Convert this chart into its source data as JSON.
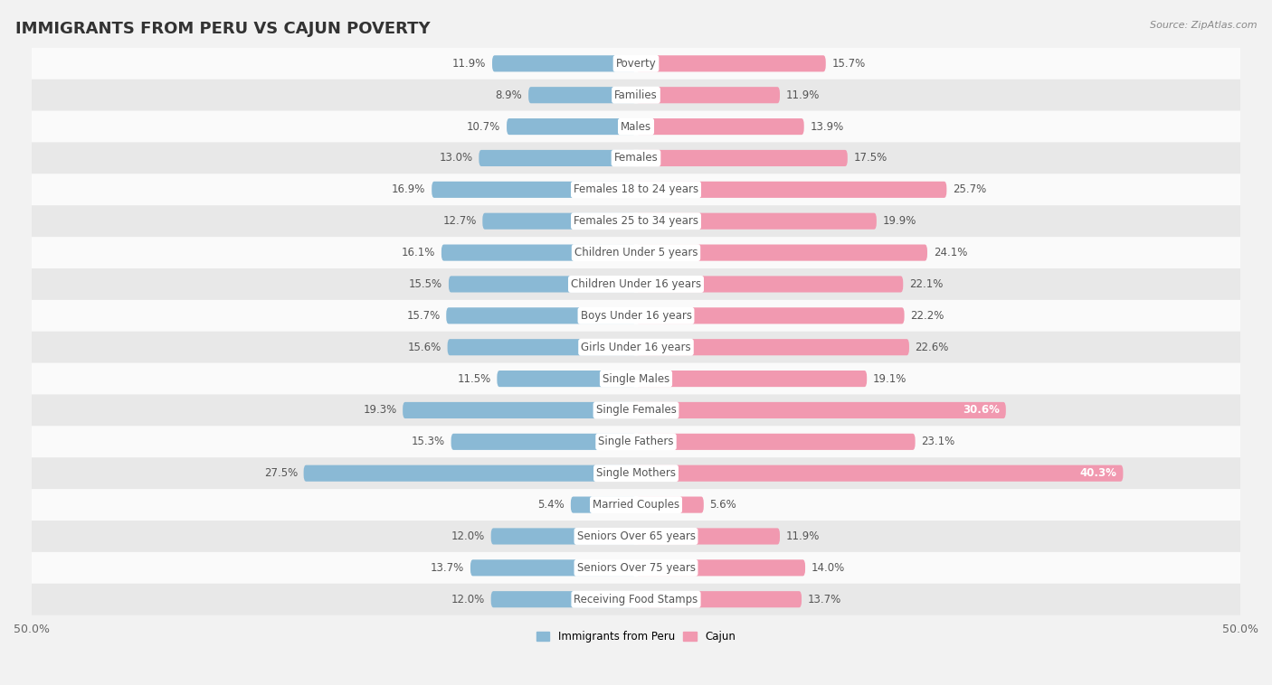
{
  "title": "IMMIGRANTS FROM PERU VS CAJUN POVERTY",
  "source": "Source: ZipAtlas.com",
  "categories": [
    "Poverty",
    "Families",
    "Males",
    "Females",
    "Females 18 to 24 years",
    "Females 25 to 34 years",
    "Children Under 5 years",
    "Children Under 16 years",
    "Boys Under 16 years",
    "Girls Under 16 years",
    "Single Males",
    "Single Females",
    "Single Fathers",
    "Single Mothers",
    "Married Couples",
    "Seniors Over 65 years",
    "Seniors Over 75 years",
    "Receiving Food Stamps"
  ],
  "peru_values": [
    11.9,
    8.9,
    10.7,
    13.0,
    16.9,
    12.7,
    16.1,
    15.5,
    15.7,
    15.6,
    11.5,
    19.3,
    15.3,
    27.5,
    5.4,
    12.0,
    13.7,
    12.0
  ],
  "cajun_values": [
    15.7,
    11.9,
    13.9,
    17.5,
    25.7,
    19.9,
    24.1,
    22.1,
    22.2,
    22.6,
    19.1,
    30.6,
    23.1,
    40.3,
    5.6,
    11.9,
    14.0,
    13.7
  ],
  "peru_color": "#8ab9d5",
  "cajun_color": "#f199b0",
  "peru_label": "Immigrants from Peru",
  "cajun_label": "Cajun",
  "xlim": 50.0,
  "bar_height": 0.52,
  "background_color": "#f2f2f2",
  "row_bg_colors": [
    "#fafafa",
    "#e8e8e8"
  ],
  "title_fontsize": 13,
  "label_fontsize": 8.5,
  "value_fontsize": 8.5,
  "axis_fontsize": 9,
  "cajun_inside_values": [
    30.6,
    40.3
  ]
}
